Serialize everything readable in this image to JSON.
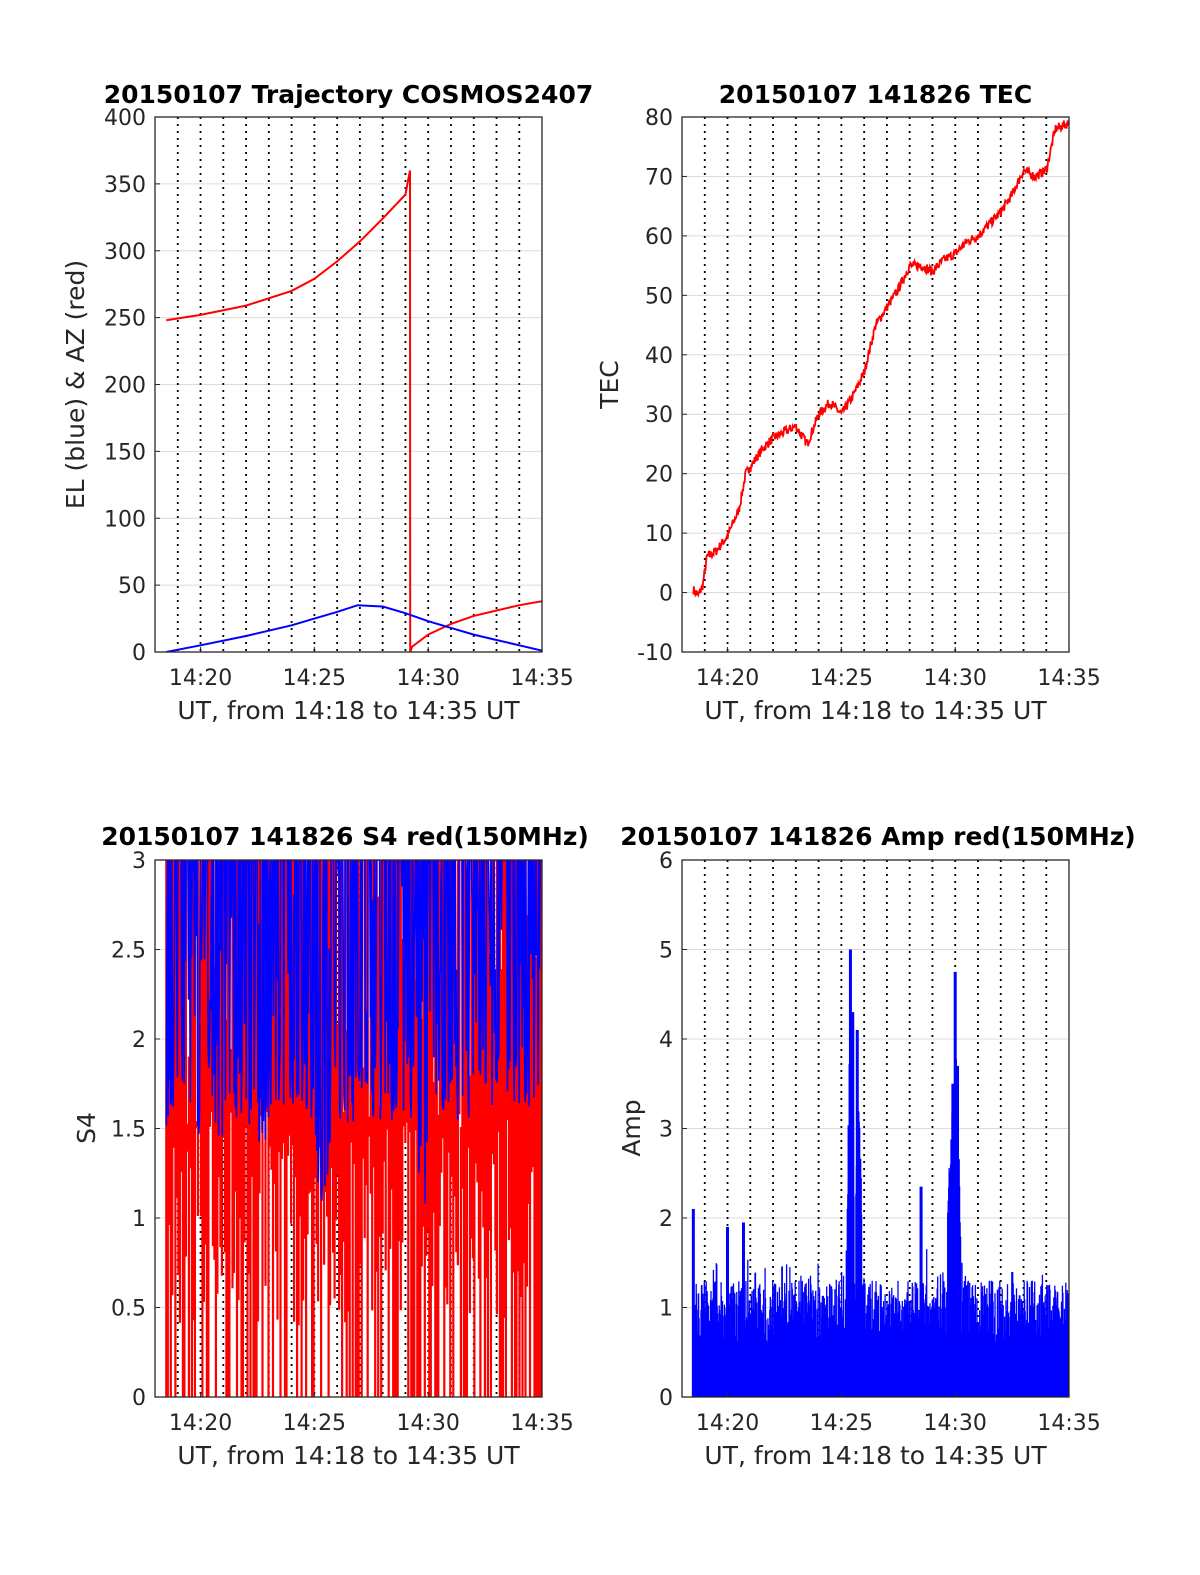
{
  "colors": {
    "red": "#ff0000",
    "blue": "#0000ff",
    "axis": "#262626",
    "grid": "#dcdcdc"
  },
  "chart_data": [
    {
      "id": "traj",
      "type": "line",
      "title": "20150107 Trajectory COSMOS2407",
      "xlabel": "UT, from 14:18 to 14:35 UT",
      "ylabel": "EL (blue) & AZ (red)",
      "xlim": [
        14.3,
        14.5833
      ],
      "ylim": [
        0,
        400
      ],
      "y_ticks": [
        "0",
        "50",
        "100",
        "150",
        "200",
        "250",
        "300",
        "350",
        "400"
      ],
      "x_ticks": [
        "14:20",
        "14:25",
        "14:30",
        "14:35"
      ],
      "grid": "dotted vertical every minute, solid horizontal",
      "series": [
        {
          "color": "red",
          "x": [
            14.3083,
            14.3333,
            14.3667,
            14.4,
            14.4167,
            14.4333,
            14.45,
            14.4667,
            14.4833,
            14.4867,
            14.4868,
            14.4883,
            14.5,
            14.5167,
            14.5333,
            14.55,
            14.5667,
            14.5833
          ],
          "values": [
            248,
            252,
            259,
            270,
            279,
            292,
            307,
            324,
            342,
            360,
            0,
            4,
            13,
            21,
            27,
            31,
            35,
            38
          ]
        },
        {
          "color": "blue",
          "x": [
            14.3083,
            14.3333,
            14.3667,
            14.4,
            14.4167,
            14.4333,
            14.4483,
            14.4667,
            14.4833,
            14.5,
            14.5167,
            14.5333,
            14.55,
            14.5667,
            14.5833
          ],
          "values": [
            0,
            5,
            12,
            20,
            25,
            30,
            35,
            34,
            29,
            23,
            18,
            13,
            9,
            5,
            1
          ]
        }
      ]
    },
    {
      "id": "tec",
      "type": "line",
      "title": "20150107 141826 TEC",
      "xlabel": "UT, from 14:18 to 14:35 UT",
      "ylabel": "TEC",
      "xlim": [
        14.3,
        14.5833
      ],
      "ylim": [
        -10,
        80
      ],
      "y_ticks": [
        "-10",
        "0",
        "10",
        "20",
        "30",
        "40",
        "50",
        "60",
        "70",
        "80"
      ],
      "x_ticks": [
        "14:20",
        "14:25",
        "14:30",
        "14:35"
      ],
      "series": [
        {
          "color": "red",
          "x": [
            14.3083,
            14.3117,
            14.315,
            14.3183,
            14.325,
            14.3333,
            14.3417,
            14.3467,
            14.3583,
            14.3667,
            14.375,
            14.3833,
            14.3917,
            14.4,
            14.4083,
            14.4167,
            14.425,
            14.4333,
            14.4417,
            14.45,
            14.4583,
            14.4667,
            14.475,
            14.4833,
            14.4917,
            14.5,
            14.5083,
            14.5167,
            14.525,
            14.5333,
            14.5417,
            14.55,
            14.5583,
            14.5667,
            14.5733,
            14.5833
          ],
          "values": [
            0.5,
            -0.5,
            1,
            6,
            7,
            9.5,
            14,
            20,
            24,
            26,
            27,
            28,
            25,
            30,
            32,
            30,
            33,
            37,
            45,
            48,
            51,
            55,
            55,
            54,
            56,
            57,
            59,
            60,
            62,
            64,
            67,
            71,
            70,
            71,
            78,
            79
          ]
        }
      ]
    },
    {
      "id": "s4",
      "type": "bar",
      "title": "20150107 141826 S4 red(150MHz)",
      "xlabel": "UT, from 14:18 to 14:35 UT",
      "ylabel": "S4",
      "xlim": [
        14.3,
        14.5833
      ],
      "ylim": [
        0,
        3
      ],
      "y_ticks": [
        "0",
        "0.5",
        "1",
        "1.5",
        "2",
        "2.5",
        "3"
      ],
      "x_ticks": [
        "14:20",
        "14:25",
        "14:30",
        "14:35"
      ],
      "red_line": "dense spikes reaching 3 across the whole interval",
      "blue_band": {
        "x": [
          14.3083,
          14.3167,
          14.325,
          14.3333,
          14.3417,
          14.35,
          14.3583,
          14.3667,
          14.375,
          14.3833,
          14.3917,
          14.4,
          14.4083,
          14.4167,
          14.4233,
          14.4267,
          14.4333,
          14.4417,
          14.45,
          14.4583,
          14.4667,
          14.475,
          14.4833,
          14.4917,
          14.4967,
          14.5,
          14.5083,
          14.5167,
          14.525,
          14.5333,
          14.5417,
          14.55,
          14.5583,
          14.5667,
          14.575,
          14.5833
        ],
        "lower": [
          1.5,
          1.5,
          1.4,
          1.3,
          1.5,
          1.4,
          1.5,
          1.5,
          1.3,
          1.5,
          1.5,
          1.5,
          1.6,
          1.4,
          0.7,
          1.3,
          1.5,
          1.5,
          1.5,
          1.5,
          1.5,
          1.5,
          1.6,
          1.5,
          0.6,
          1.5,
          1.6,
          1.5,
          1.5,
          1.5,
          1.6,
          1.6,
          1.6,
          1.6,
          1.6,
          1.7
        ]
      }
    },
    {
      "id": "amp",
      "type": "bar",
      "title": "20150107 141826 Amp red(150MHz)",
      "xlabel": "UT, from 14:18 to 14:35 UT",
      "ylabel": "Amp",
      "xlim": [
        14.3,
        14.5833
      ],
      "ylim": [
        0,
        6
      ],
      "y_ticks": [
        "0",
        "1",
        "2",
        "3",
        "4",
        "5",
        "6"
      ],
      "x_ticks": [
        "14:20",
        "14:25",
        "14:30",
        "14:35"
      ],
      "series": [
        {
          "color": "blue",
          "x": [
            14.3083,
            14.31,
            14.3117,
            14.315,
            14.32,
            14.325,
            14.33,
            14.3333,
            14.3383,
            14.3417,
            14.345,
            14.35,
            14.3583,
            14.3667,
            14.375,
            14.3833,
            14.3917,
            14.4,
            14.4083,
            14.4167,
            14.42,
            14.4233,
            14.425,
            14.4267,
            14.4283,
            14.4333,
            14.4417,
            14.45,
            14.4583,
            14.4667,
            14.4717,
            14.475,
            14.48,
            14.4833,
            14.4917,
            14.4983,
            14.5,
            14.5017,
            14.505,
            14.5083,
            14.5167,
            14.525,
            14.5333,
            14.5417,
            14.55,
            14.5583,
            14.5667,
            14.575,
            14.5833
          ],
          "values": [
            2.1,
            1.3,
            1.4,
            1.2,
            1.3,
            1.5,
            1.3,
            1.9,
            1.2,
            1.5,
            1.95,
            1.3,
            1.5,
            1.3,
            1.5,
            1.4,
            1.3,
            1.5,
            1.2,
            1.4,
            1.3,
            5.0,
            4.3,
            1.4,
            4.1,
            1.3,
            1.3,
            1.2,
            1.3,
            1.2,
            1.4,
            2.35,
            1.5,
            1.3,
            1.4,
            3.5,
            4.75,
            3.7,
            1.5,
            1.3,
            1.2,
            1.3,
            1.3,
            1.4,
            1.3,
            1.3,
            1.4,
            1.3,
            1.25
          ]
        }
      ]
    }
  ]
}
